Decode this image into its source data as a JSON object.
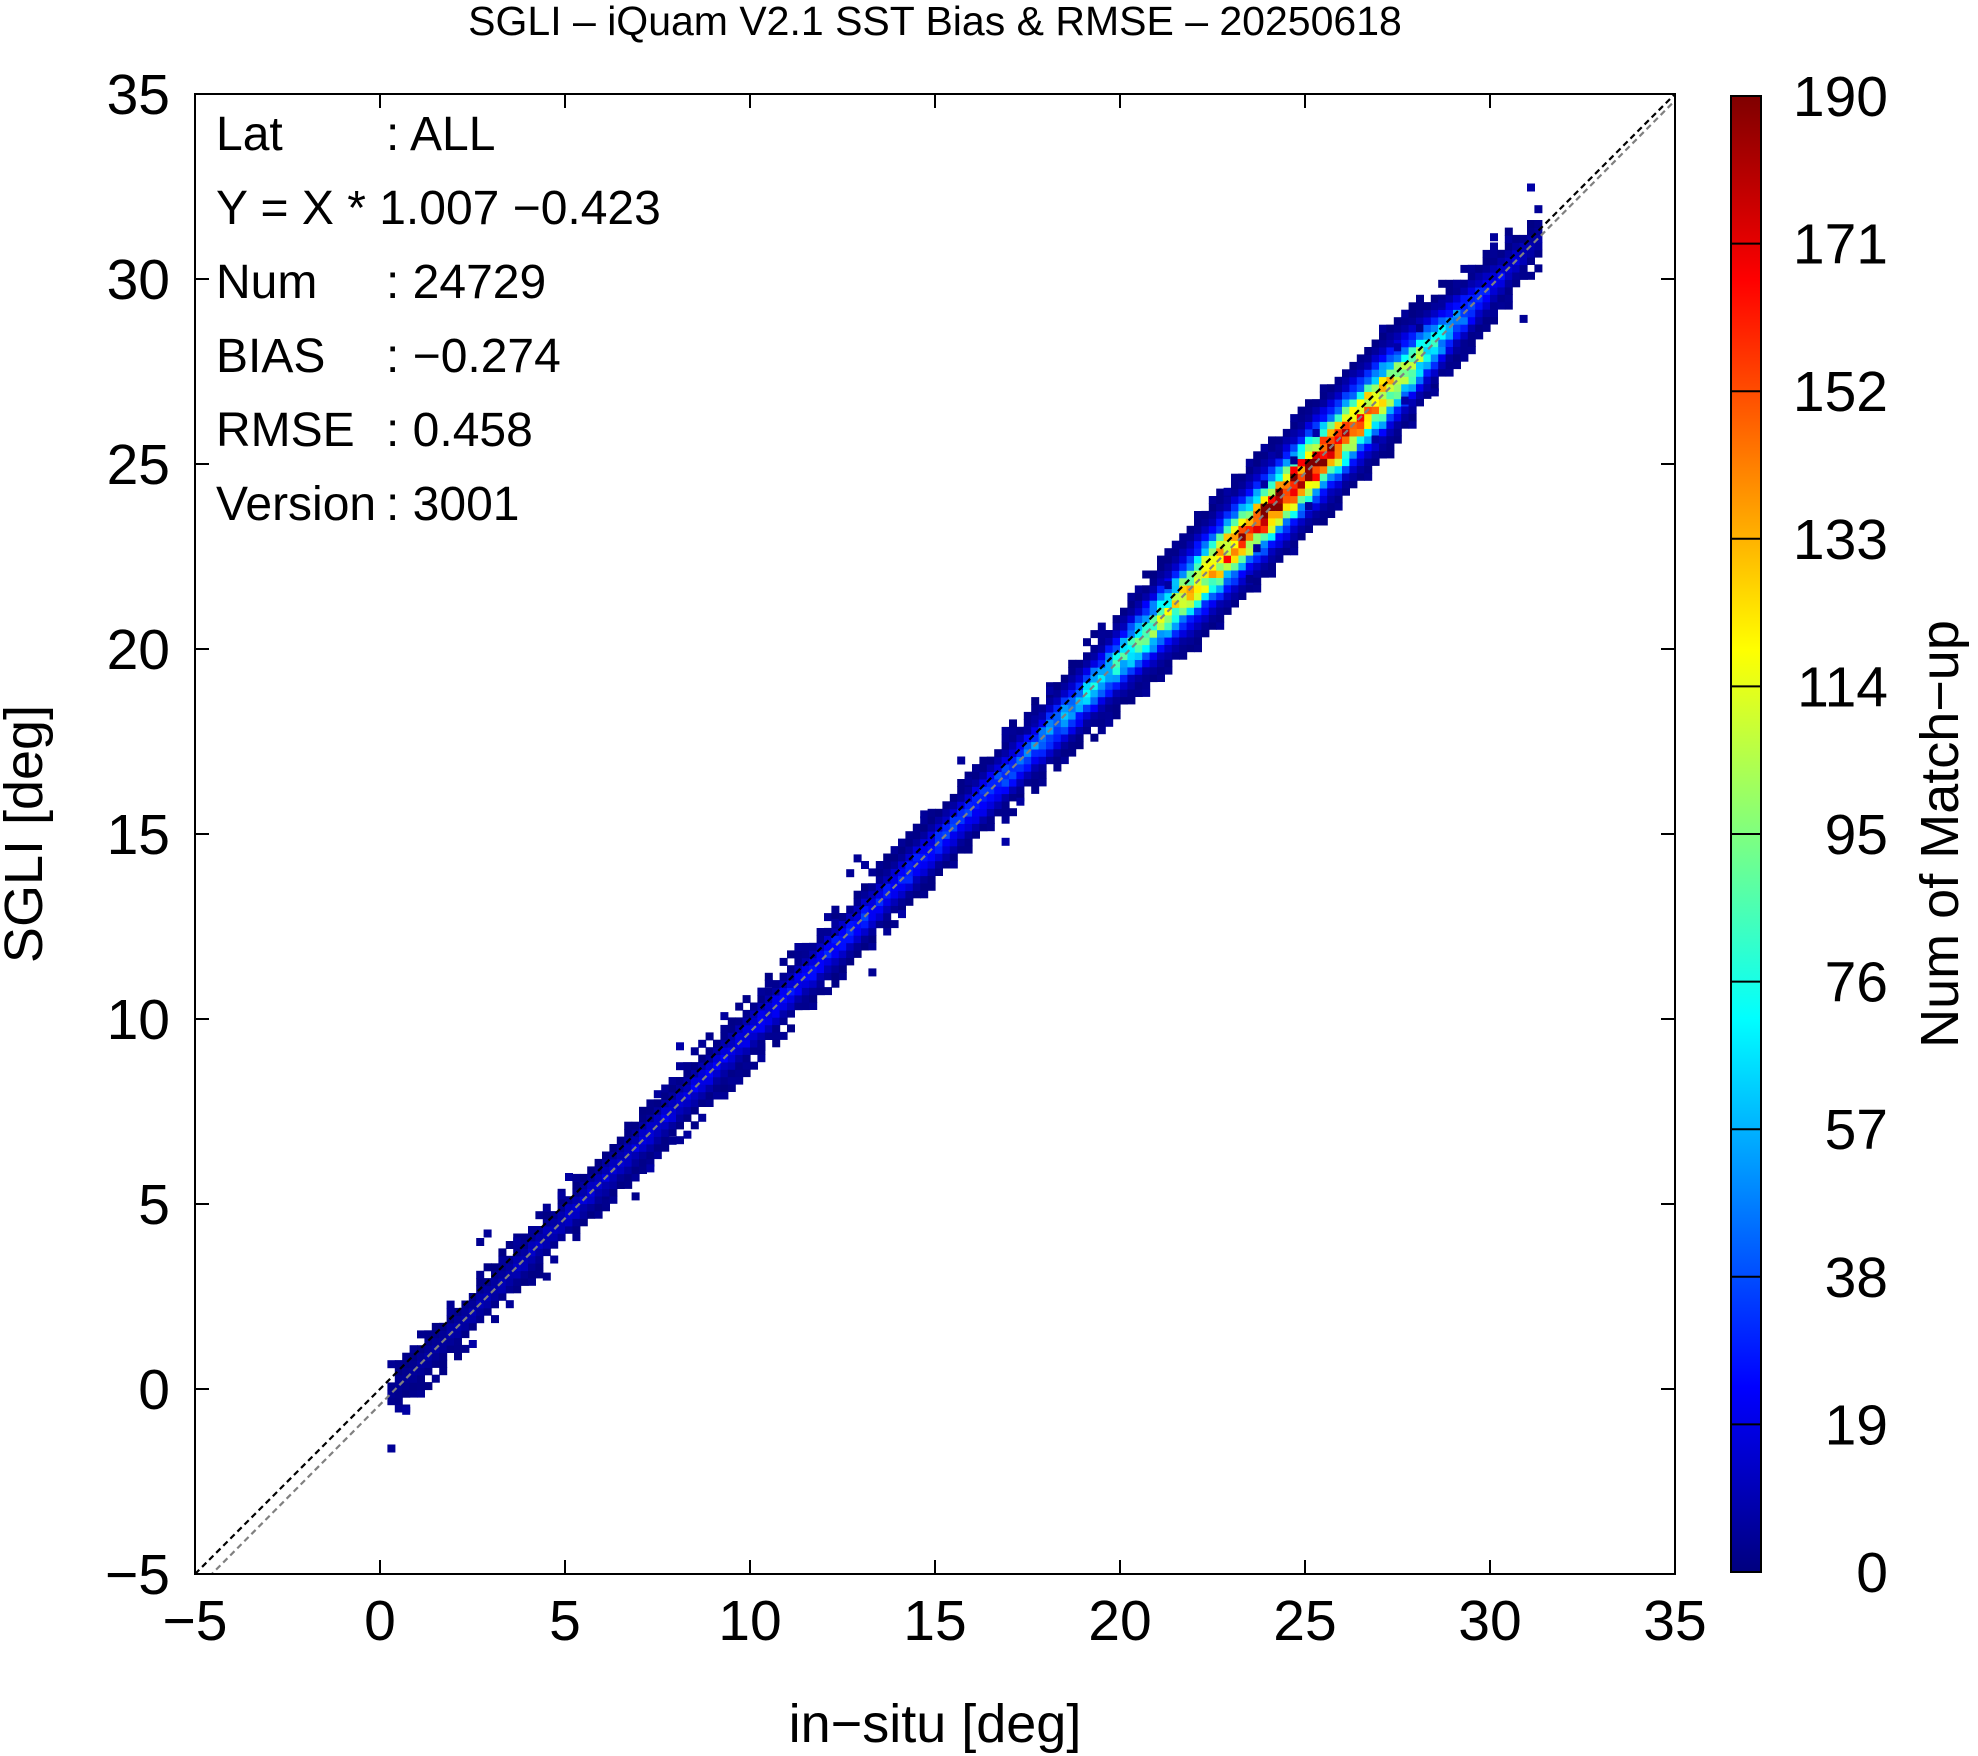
{
  "chart_data": {
    "type": "heatmap",
    "title": "SGLI – iQuam V2.1 SST Bias & RMSE  – 20250618",
    "xlabel": "in−situ [deg]",
    "ylabel": "SGLI [deg]",
    "colorbar_label": "Num of Match−up",
    "xlim": [
      -5,
      35
    ],
    "ylim": [
      -5,
      35
    ],
    "x_ticks": [
      -5,
      0,
      5,
      10,
      15,
      20,
      25,
      30,
      35
    ],
    "y_ticks": [
      -5,
      0,
      5,
      10,
      15,
      20,
      25,
      30,
      35
    ],
    "x_tick_labels": [
      "−5",
      "0",
      "5",
      "10",
      "15",
      "20",
      "25",
      "30",
      "35"
    ],
    "y_tick_labels": [
      "−5",
      "0",
      "5",
      "10",
      "15",
      "20",
      "25",
      "30",
      "35"
    ],
    "colorbar_range": [
      0,
      190
    ],
    "colorbar_ticks": [
      "0",
      "19",
      "38",
      "57",
      "76",
      "95",
      "114",
      "133",
      "152",
      "171",
      "190"
    ],
    "colormap": [
      "#00007f",
      "#0000ff",
      "#007fff",
      "#00ffff",
      "#7fff7f",
      "#ffff00",
      "#ff7f00",
      "#ff0000",
      "#7f0000"
    ],
    "reference_lines": [
      {
        "name": "1:1",
        "slope": 1.0,
        "intercept": 0.0,
        "color": "#000000",
        "style": "dashed"
      },
      {
        "name": "fit",
        "slope": 1.007,
        "intercept": -0.423,
        "color": "#808080",
        "style": "dashed"
      }
    ],
    "stats": [
      {
        "label": "Lat",
        "value": ": ALL"
      },
      {
        "label": "Y = X * 1.007 −0.423",
        "value": ""
      },
      {
        "label": "Num",
        "value": ": 24729"
      },
      {
        "label": "BIAS",
        "value": ": −0.274"
      },
      {
        "label": "RMSE",
        "value": ": 0.458"
      },
      {
        "label": "Version",
        "value": ": 3001"
      }
    ],
    "density_profile": {
      "x": [
        0,
        2,
        4,
        6,
        8,
        10,
        12,
        14,
        16,
        17.5,
        19,
        20.5,
        22,
        23,
        24,
        25,
        26,
        27,
        28,
        29,
        30,
        31
      ],
      "peak_count": [
        3,
        8,
        12,
        15,
        18,
        22,
        28,
        30,
        35,
        45,
        60,
        85,
        120,
        150,
        175,
        185,
        170,
        130,
        90,
        50,
        25,
        8
      ]
    },
    "grid": false,
    "legend": "none"
  }
}
